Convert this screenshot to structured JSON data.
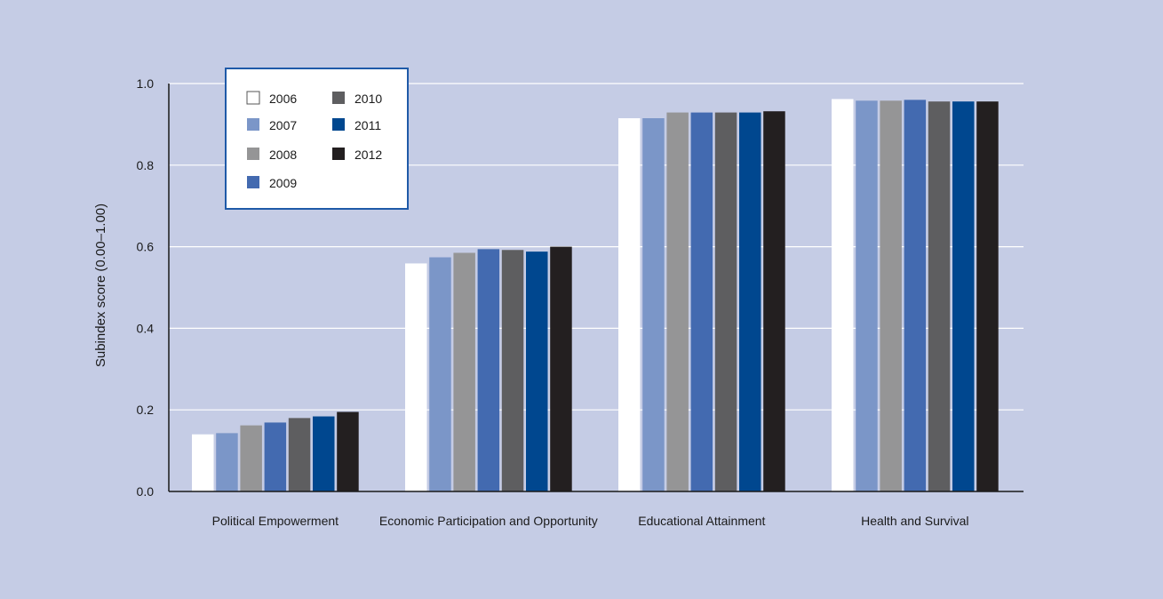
{
  "chart_data": {
    "type": "bar",
    "title": "",
    "xlabel": "",
    "ylabel": "Subindex score (0.00–1.00)",
    "ylim": [
      0,
      1.0
    ],
    "yticks": [
      "0.0",
      "0.2",
      "0.4",
      "0.6",
      "0.8",
      "1.0"
    ],
    "grid": true,
    "legend_position": "top-left",
    "categories": [
      "Political Empowerment",
      "Economic Participation and Opportunity",
      "Educational Attainment",
      "Health and Survival"
    ],
    "series": [
      {
        "name": "2006",
        "color": "#ffffff",
        "values": [
          0.14,
          0.559,
          0.915,
          0.962
        ]
      },
      {
        "name": "2007",
        "color": "#7b96c8",
        "values": [
          0.143,
          0.574,
          0.915,
          0.958
        ]
      },
      {
        "name": "2008",
        "color": "#959596",
        "values": [
          0.162,
          0.585,
          0.929,
          0.958
        ]
      },
      {
        "name": "2009",
        "color": "#436ab0",
        "values": [
          0.169,
          0.594,
          0.929,
          0.96
        ]
      },
      {
        "name": "2010",
        "color": "#5e5e60",
        "values": [
          0.18,
          0.592,
          0.929,
          0.956
        ]
      },
      {
        "name": "2011",
        "color": "#00478f",
        "values": [
          0.184,
          0.588,
          0.929,
          0.956
        ]
      },
      {
        "name": "2012",
        "color": "#231f20",
        "values": [
          0.195,
          0.6,
          0.932,
          0.956
        ]
      }
    ]
  }
}
